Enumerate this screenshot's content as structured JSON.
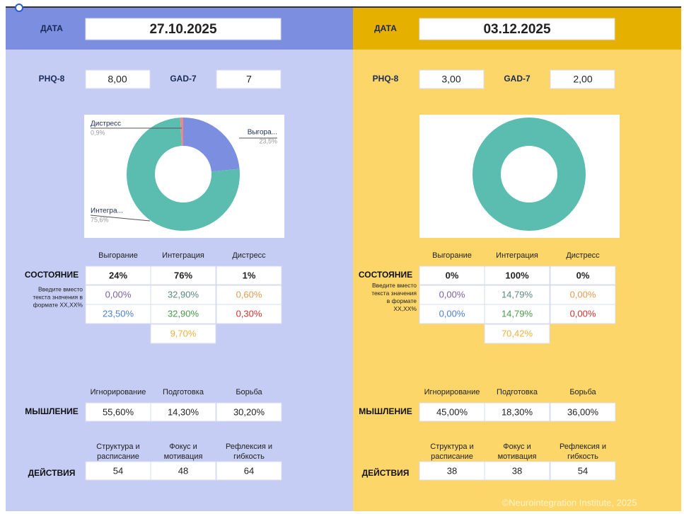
{
  "panels": [
    {
      "date_label": "ДАТА",
      "date": "27.10.2025",
      "phq_label": "PHQ-8",
      "phq": "8,00",
      "gad_label": "GAD-7",
      "gad": "7",
      "chart": {
        "type": "pie",
        "categories": [
          "Выгора...",
          "Интегра...",
          "Дистресс"
        ],
        "values": [
          23.5,
          75.6,
          0.9
        ],
        "value_labels": [
          "23,5%",
          "75,6%",
          "0,9%"
        ],
        "colors": [
          "#7b8ee0",
          "#5bbcb0",
          "#e88a8a"
        ]
      },
      "state": {
        "label": "СОСТОЯНИЕ",
        "headers": [
          "Выгорание",
          "Интеграция",
          "Дистресс"
        ],
        "values": [
          "24%",
          "76%",
          "1%"
        ],
        "note": [
          "Введите вместо",
          "текста значения в",
          "формате  XX,XX%"
        ],
        "rows": [
          [
            "0,00%",
            "32,90%",
            "0,60%"
          ],
          [
            "23,50%",
            "32,90%",
            "0,30%"
          ]
        ],
        "extra": "9,70%"
      },
      "thinking": {
        "label": "МЫШЛЕНИЕ",
        "headers": [
          "Игнорирование",
          "Подготовка",
          "Борьба"
        ],
        "values": [
          "55,60%",
          "14,30%",
          "30,20%"
        ]
      },
      "actions": {
        "label": "ДЕЙСТВИЯ",
        "headers": [
          [
            "Структура и",
            "расписание"
          ],
          [
            "Фокус и",
            "мотивация"
          ],
          [
            "Рефлексия и",
            "гибкость"
          ]
        ],
        "values": [
          "54",
          "48",
          "64"
        ]
      }
    },
    {
      "date_label": "ДАТА",
      "date": "03.12.2025",
      "phq_label": "PHQ-8",
      "phq": "3,00",
      "gad_label": "GAD-7",
      "gad": "2,00",
      "chart": {
        "type": "pie",
        "values": [
          100
        ],
        "colors": [
          "#5bbcb0"
        ]
      },
      "state": {
        "label": "СОСТОЯНИЕ",
        "headers": [
          "Выгорание",
          "Интеграция",
          "Дистресс"
        ],
        "values": [
          "0%",
          "100%",
          "0%"
        ],
        "note": [
          "Введите вместо",
          "текста значения",
          "в формате",
          "XX,XX%"
        ],
        "rows": [
          [
            "0,00%",
            "14,79%",
            "0,00%"
          ],
          [
            "0,00%",
            "14,79%",
            "0,00%"
          ]
        ],
        "extra": "70,42%"
      },
      "thinking": {
        "label": "МЫШЛЕНИЕ",
        "headers": [
          "Игнорирование",
          "Подготовка",
          "Борьба"
        ],
        "values": [
          "45,00%",
          "18,30%",
          "36,00%"
        ]
      },
      "actions": {
        "label": "ДЕЙСТВИЯ",
        "headers": [
          [
            "Структура и",
            "расписание"
          ],
          [
            "Фокус и",
            "мотивация"
          ],
          [
            "Рефлексия и",
            "гибкость"
          ]
        ],
        "values": [
          "38",
          "38",
          "54"
        ]
      }
    }
  ],
  "footer": "©Neurointegration Institute, 2025"
}
